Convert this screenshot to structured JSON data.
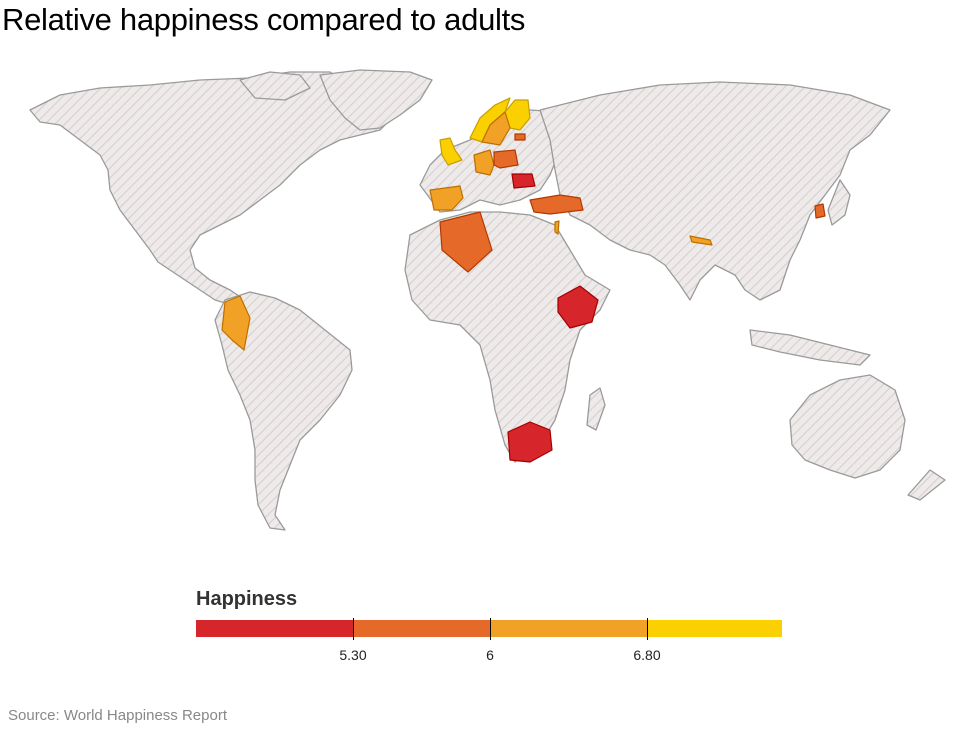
{
  "title": "Relative happiness compared to adults",
  "legend": {
    "title": "Happiness",
    "bins": [
      {
        "color": "#d6262b"
      },
      {
        "color": "#e56a29"
      },
      {
        "color": "#f1a126"
      },
      {
        "color": "#fbd000"
      }
    ],
    "ticks": [
      "5.30",
      "6",
      "6.80"
    ]
  },
  "colors": {
    "no_data_fill": "#eeeaea",
    "no_data_hatch": "#d6cfcf",
    "border": "#9a9a9a"
  },
  "highlighted_countries": [
    {
      "name": "United Kingdom",
      "color": "#fbd000"
    },
    {
      "name": "Norway",
      "color": "#fbd000"
    },
    {
      "name": "Finland",
      "color": "#fbd000"
    },
    {
      "name": "Sweden",
      "color": "#f1a126"
    },
    {
      "name": "Germany",
      "color": "#f1a126"
    },
    {
      "name": "Spain",
      "color": "#f1a126"
    },
    {
      "name": "Colombia",
      "color": "#f1a126"
    },
    {
      "name": "Israel",
      "color": "#f1a126"
    },
    {
      "name": "Nepal",
      "color": "#f1a126"
    },
    {
      "name": "Poland",
      "color": "#e56a29"
    },
    {
      "name": "Estonia",
      "color": "#e56a29"
    },
    {
      "name": "Turkey",
      "color": "#e56a29"
    },
    {
      "name": "Algeria",
      "color": "#e56a29"
    },
    {
      "name": "South Korea",
      "color": "#e56a29"
    },
    {
      "name": "Romania",
      "color": "#d6262b"
    },
    {
      "name": "Ethiopia",
      "color": "#d6262b"
    },
    {
      "name": "South Africa",
      "color": "#d6262b"
    }
  ],
  "source": "Source: World Happiness Report"
}
